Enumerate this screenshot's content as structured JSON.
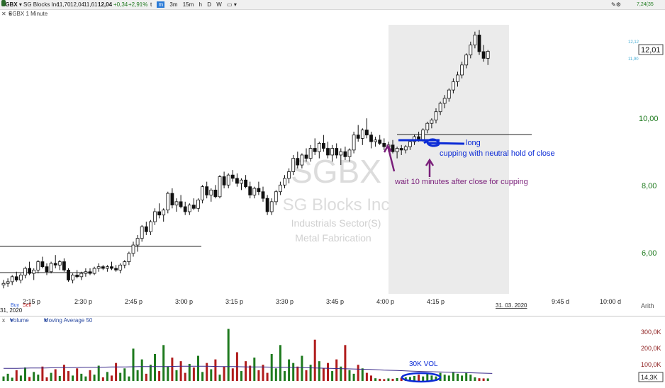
{
  "toolbar": {
    "symbol": "SGBX",
    "company": "SG Blocks Inc",
    "quote_open": "11,70",
    "quote_high": "12,04",
    "quote_low": "11,61",
    "quote_last": "12,04",
    "quote_change": "+0,34",
    "quote_change_pct": "+2,91%",
    "timeframes": [
      "t",
      "m",
      "3m",
      "15m",
      "h",
      "D",
      "W"
    ],
    "active_timeframe": "m",
    "right_value": "7,24(35"
  },
  "chart_header": {
    "label": "SGBX 1 Minute"
  },
  "watermark": {
    "symbol": "SGBX",
    "name": "SG Blocks Inc",
    "sector": "Industrials Sector(S)",
    "industry": "Metal Fabrication"
  },
  "price_axis": {
    "labels": [
      "10,00",
      "8,00",
      "6,00"
    ],
    "last_price": "12,01",
    "small_levels": [
      "12,12",
      "11,90"
    ]
  },
  "time_axis": {
    "labels": [
      "2:15 p",
      "2:30 p",
      "2:45 p",
      "3:00 p",
      "3:15 p",
      "3:30 p",
      "3:45 p",
      "4:00 p",
      "4:15 p",
      "9:45 d",
      "10:00 d"
    ],
    "date_label": "31. 03. 2020",
    "scale_mode": "Arith"
  },
  "buy_sell": {
    "buy": "Buy",
    "sell": "Sell",
    "partial_date": "31, 2020"
  },
  "annotations": {
    "long": "long",
    "cupping": "cupping with neutral hold of close",
    "wait": "wait 10 minutes after close for cupping",
    "vol": "30K VOL"
  },
  "volume_panel": {
    "title": "Volume",
    "indicator": "Moving Average 50",
    "axis_labels": [
      "300,0K",
      "200,0K",
      "100,0K"
    ],
    "last_volume": "14,3K"
  },
  "colors": {
    "up": "#1e7a1e",
    "down": "#b01c1c",
    "annotation_blue": "#0b2bd6",
    "annotation_purple": "#7a1f7a",
    "afterhours_shade": "#ebebeb",
    "ma_line": "#3a2a8a",
    "price_labels": "#1e7a1e"
  },
  "chart_data": {
    "type": "candlestick",
    "symbol": "SGBX",
    "interval": "1 Minute",
    "y_range": [
      4.8,
      12.7
    ],
    "session_close": "4:00 p",
    "levels": {
      "pre_resistance": 5.6,
      "afterhours_line": 9.55
    },
    "ohlc": [
      [
        5.0,
        5.15,
        4.9,
        5.05
      ],
      [
        5.05,
        5.2,
        4.95,
        5.1
      ],
      [
        5.1,
        5.3,
        5.0,
        5.25
      ],
      [
        5.25,
        5.4,
        5.1,
        5.15
      ],
      [
        5.15,
        5.35,
        5.05,
        5.3
      ],
      [
        5.3,
        5.55,
        5.2,
        5.5
      ],
      [
        5.5,
        5.7,
        5.3,
        5.35
      ],
      [
        5.35,
        5.5,
        5.15,
        5.45
      ],
      [
        5.45,
        5.75,
        5.35,
        5.7
      ],
      [
        5.7,
        5.85,
        5.5,
        5.55
      ],
      [
        5.55,
        5.65,
        5.3,
        5.4
      ],
      [
        5.4,
        5.7,
        5.35,
        5.65
      ],
      [
        5.65,
        5.9,
        5.5,
        5.6
      ],
      [
        5.6,
        5.75,
        5.45,
        5.7
      ],
      [
        5.7,
        5.8,
        5.4,
        5.45
      ],
      [
        5.45,
        5.5,
        5.1,
        5.15
      ],
      [
        5.15,
        5.35,
        5.05,
        5.3
      ],
      [
        5.3,
        5.45,
        5.2,
        5.25
      ],
      [
        5.25,
        5.4,
        5.15,
        5.35
      ],
      [
        5.35,
        5.5,
        5.25,
        5.4
      ],
      [
        5.4,
        5.5,
        5.3,
        5.35
      ],
      [
        5.35,
        5.55,
        5.3,
        5.5
      ],
      [
        5.5,
        5.65,
        5.4,
        5.55
      ],
      [
        5.55,
        5.6,
        5.45,
        5.5
      ],
      [
        5.5,
        5.6,
        5.4,
        5.55
      ],
      [
        5.55,
        5.7,
        5.45,
        5.5
      ],
      [
        5.5,
        5.6,
        5.4,
        5.45
      ],
      [
        5.45,
        5.65,
        5.35,
        5.6
      ],
      [
        5.6,
        5.75,
        5.5,
        5.7
      ],
      [
        5.7,
        6.0,
        5.6,
        5.95
      ],
      [
        5.95,
        6.3,
        5.85,
        6.2
      ],
      [
        6.2,
        6.5,
        6.0,
        6.4
      ],
      [
        6.4,
        6.8,
        6.3,
        6.75
      ],
      [
        6.75,
        6.9,
        6.5,
        6.6
      ],
      [
        6.6,
        6.95,
        6.5,
        6.9
      ],
      [
        6.9,
        7.3,
        6.8,
        7.2
      ],
      [
        7.2,
        7.45,
        7.0,
        7.1
      ],
      [
        7.1,
        7.3,
        6.9,
        7.25
      ],
      [
        7.25,
        7.8,
        7.15,
        7.75
      ],
      [
        7.75,
        7.9,
        7.3,
        7.4
      ],
      [
        7.4,
        7.6,
        7.2,
        7.5
      ],
      [
        7.5,
        7.7,
        7.3,
        7.35
      ],
      [
        7.35,
        7.5,
        7.1,
        7.2
      ],
      [
        7.2,
        7.45,
        7.1,
        7.4
      ],
      [
        7.4,
        7.6,
        7.25,
        7.3
      ],
      [
        7.3,
        7.6,
        7.2,
        7.55
      ],
      [
        7.55,
        8.0,
        7.45,
        7.95
      ],
      [
        7.95,
        8.1,
        7.6,
        7.7
      ],
      [
        7.7,
        7.9,
        7.5,
        7.85
      ],
      [
        7.85,
        8.0,
        7.6,
        7.65
      ],
      [
        7.65,
        8.3,
        7.6,
        8.25
      ],
      [
        8.25,
        8.4,
        7.9,
        8.0
      ],
      [
        8.0,
        8.35,
        7.9,
        8.3
      ],
      [
        8.3,
        8.45,
        8.1,
        8.2
      ],
      [
        8.2,
        8.35,
        7.95,
        8.05
      ],
      [
        8.05,
        8.2,
        7.85,
        8.15
      ],
      [
        8.15,
        8.3,
        7.9,
        7.95
      ],
      [
        7.95,
        8.1,
        7.6,
        7.7
      ],
      [
        7.7,
        7.95,
        7.6,
        7.9
      ],
      [
        7.9,
        8.1,
        7.7,
        7.8
      ],
      [
        7.8,
        7.95,
        7.5,
        7.6
      ],
      [
        7.6,
        7.7,
        7.1,
        7.2
      ],
      [
        7.2,
        7.6,
        7.1,
        7.5
      ],
      [
        7.5,
        7.85,
        7.4,
        7.8
      ],
      [
        7.8,
        8.1,
        7.7,
        8.0
      ],
      [
        8.0,
        8.3,
        7.9,
        8.2
      ],
      [
        8.2,
        8.5,
        8.05,
        8.4
      ],
      [
        8.4,
        8.9,
        8.3,
        8.8
      ],
      [
        8.8,
        9.0,
        8.5,
        8.6
      ],
      [
        8.6,
        8.95,
        8.5,
        8.9
      ],
      [
        8.9,
        9.1,
        8.7,
        8.8
      ],
      [
        8.8,
        9.2,
        8.7,
        9.1
      ],
      [
        9.1,
        9.4,
        8.9,
        9.0
      ],
      [
        9.0,
        9.3,
        8.8,
        9.25
      ],
      [
        9.25,
        9.5,
        9.0,
        9.1
      ],
      [
        9.1,
        9.3,
        8.8,
        8.9
      ],
      [
        8.9,
        9.2,
        8.7,
        9.1
      ],
      [
        9.1,
        9.25,
        8.8,
        8.9
      ],
      [
        8.9,
        9.1,
        8.6,
        9.0
      ],
      [
        9.0,
        9.15,
        8.75,
        8.85
      ],
      [
        8.85,
        9.1,
        8.7,
        9.05
      ],
      [
        9.05,
        9.6,
        8.95,
        9.5
      ],
      [
        9.5,
        9.8,
        9.3,
        9.4
      ],
      [
        9.4,
        9.7,
        9.2,
        9.65
      ],
      [
        9.65,
        10.0,
        9.4,
        9.5
      ],
      [
        9.5,
        9.6,
        9.1,
        9.3
      ],
      [
        9.3,
        9.45,
        9.15,
        9.35
      ],
      [
        9.35,
        9.5,
        9.2,
        9.25
      ],
      [
        9.25,
        9.4,
        9.05,
        9.15
      ],
      [
        9.15,
        9.3,
        9.0,
        9.2
      ],
      [
        9.2,
        9.35,
        8.95,
        9.0
      ],
      [
        9.0,
        9.15,
        8.8,
        9.1
      ],
      [
        9.1,
        9.2,
        8.9,
        9.05
      ],
      [
        9.05,
        9.2,
        8.95,
        9.15
      ],
      [
        9.15,
        9.35,
        9.05,
        9.3
      ],
      [
        9.3,
        9.5,
        9.2,
        9.45
      ],
      [
        9.45,
        9.6,
        9.3,
        9.35
      ],
      [
        9.35,
        9.7,
        9.3,
        9.65
      ],
      [
        9.65,
        9.9,
        9.55,
        9.85
      ],
      [
        9.85,
        10.0,
        9.7,
        9.95
      ],
      [
        9.95,
        10.3,
        9.85,
        10.2
      ],
      [
        10.2,
        10.5,
        10.1,
        10.45
      ],
      [
        10.45,
        10.7,
        10.3,
        10.6
      ],
      [
        10.6,
        10.9,
        10.5,
        10.85
      ],
      [
        10.85,
        11.2,
        10.75,
        11.1
      ],
      [
        11.1,
        11.4,
        10.95,
        11.3
      ],
      [
        11.3,
        11.7,
        11.2,
        11.6
      ],
      [
        11.6,
        11.95,
        11.5,
        11.9
      ],
      [
        11.9,
        12.3,
        11.8,
        12.2
      ],
      [
        12.2,
        12.6,
        12.1,
        12.5
      ],
      [
        12.5,
        12.65,
        11.9,
        12.0
      ],
      [
        12.0,
        12.2,
        11.7,
        11.8
      ],
      [
        11.8,
        12.05,
        11.6,
        12.01
      ]
    ],
    "volume_k": [
      25,
      40,
      18,
      60,
      30,
      75,
      22,
      50,
      35,
      80,
      20,
      45,
      65,
      28,
      90,
      55,
      30,
      70,
      40,
      25,
      60,
      35,
      85,
      20,
      50,
      30,
      100,
      45,
      70,
      25,
      180,
      60,
      120,
      40,
      90,
      150,
      55,
      200,
      80,
      130,
      60,
      110,
      45,
      95,
      75,
      140,
      50,
      100,
      65,
      120,
      35,
      80,
      290,
      70,
      160,
      55,
      110,
      85,
      130,
      60,
      90,
      45,
      150,
      70,
      200,
      55,
      120,
      100,
      80,
      140,
      60,
      90,
      230,
      110,
      70,
      100,
      55,
      120,
      80,
      200,
      60,
      40,
      90,
      70,
      45,
      30,
      15,
      12,
      10,
      14,
      12,
      16,
      18,
      20,
      22,
      28,
      35,
      25,
      40,
      30,
      25,
      45,
      35,
      30,
      50,
      40,
      30,
      45,
      35,
      20,
      15,
      14,
      14
    ],
    "ma50_k": [
      70,
      70,
      72,
      72,
      74,
      74,
      76,
      76,
      78,
      78,
      80,
      80,
      80,
      82,
      82,
      82,
      80,
      80,
      78,
      78,
      76,
      76,
      74,
      72,
      70,
      68,
      66,
      64,
      60,
      58,
      55,
      52,
      50,
      48,
      46,
      44,
      42
    ]
  }
}
